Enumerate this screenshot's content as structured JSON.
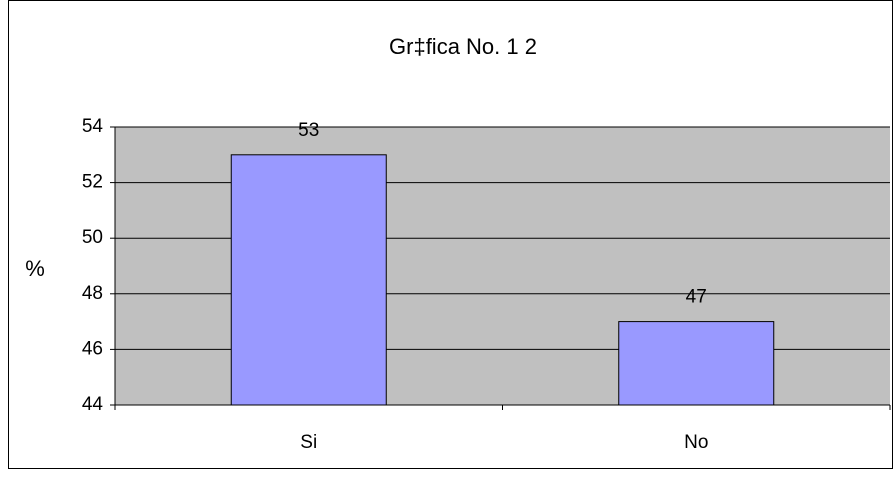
{
  "chart_data": {
    "type": "bar",
    "title": "Gr‡fica No. 1 2",
    "y_label": "%",
    "categories": [
      "Si",
      "No"
    ],
    "values": [
      53,
      47
    ],
    "color": "#9999ff",
    "ylim": [
      44,
      54
    ],
    "yticks": [
      44,
      46,
      48,
      50,
      52,
      54
    ],
    "grid": true,
    "data_labels": true
  }
}
